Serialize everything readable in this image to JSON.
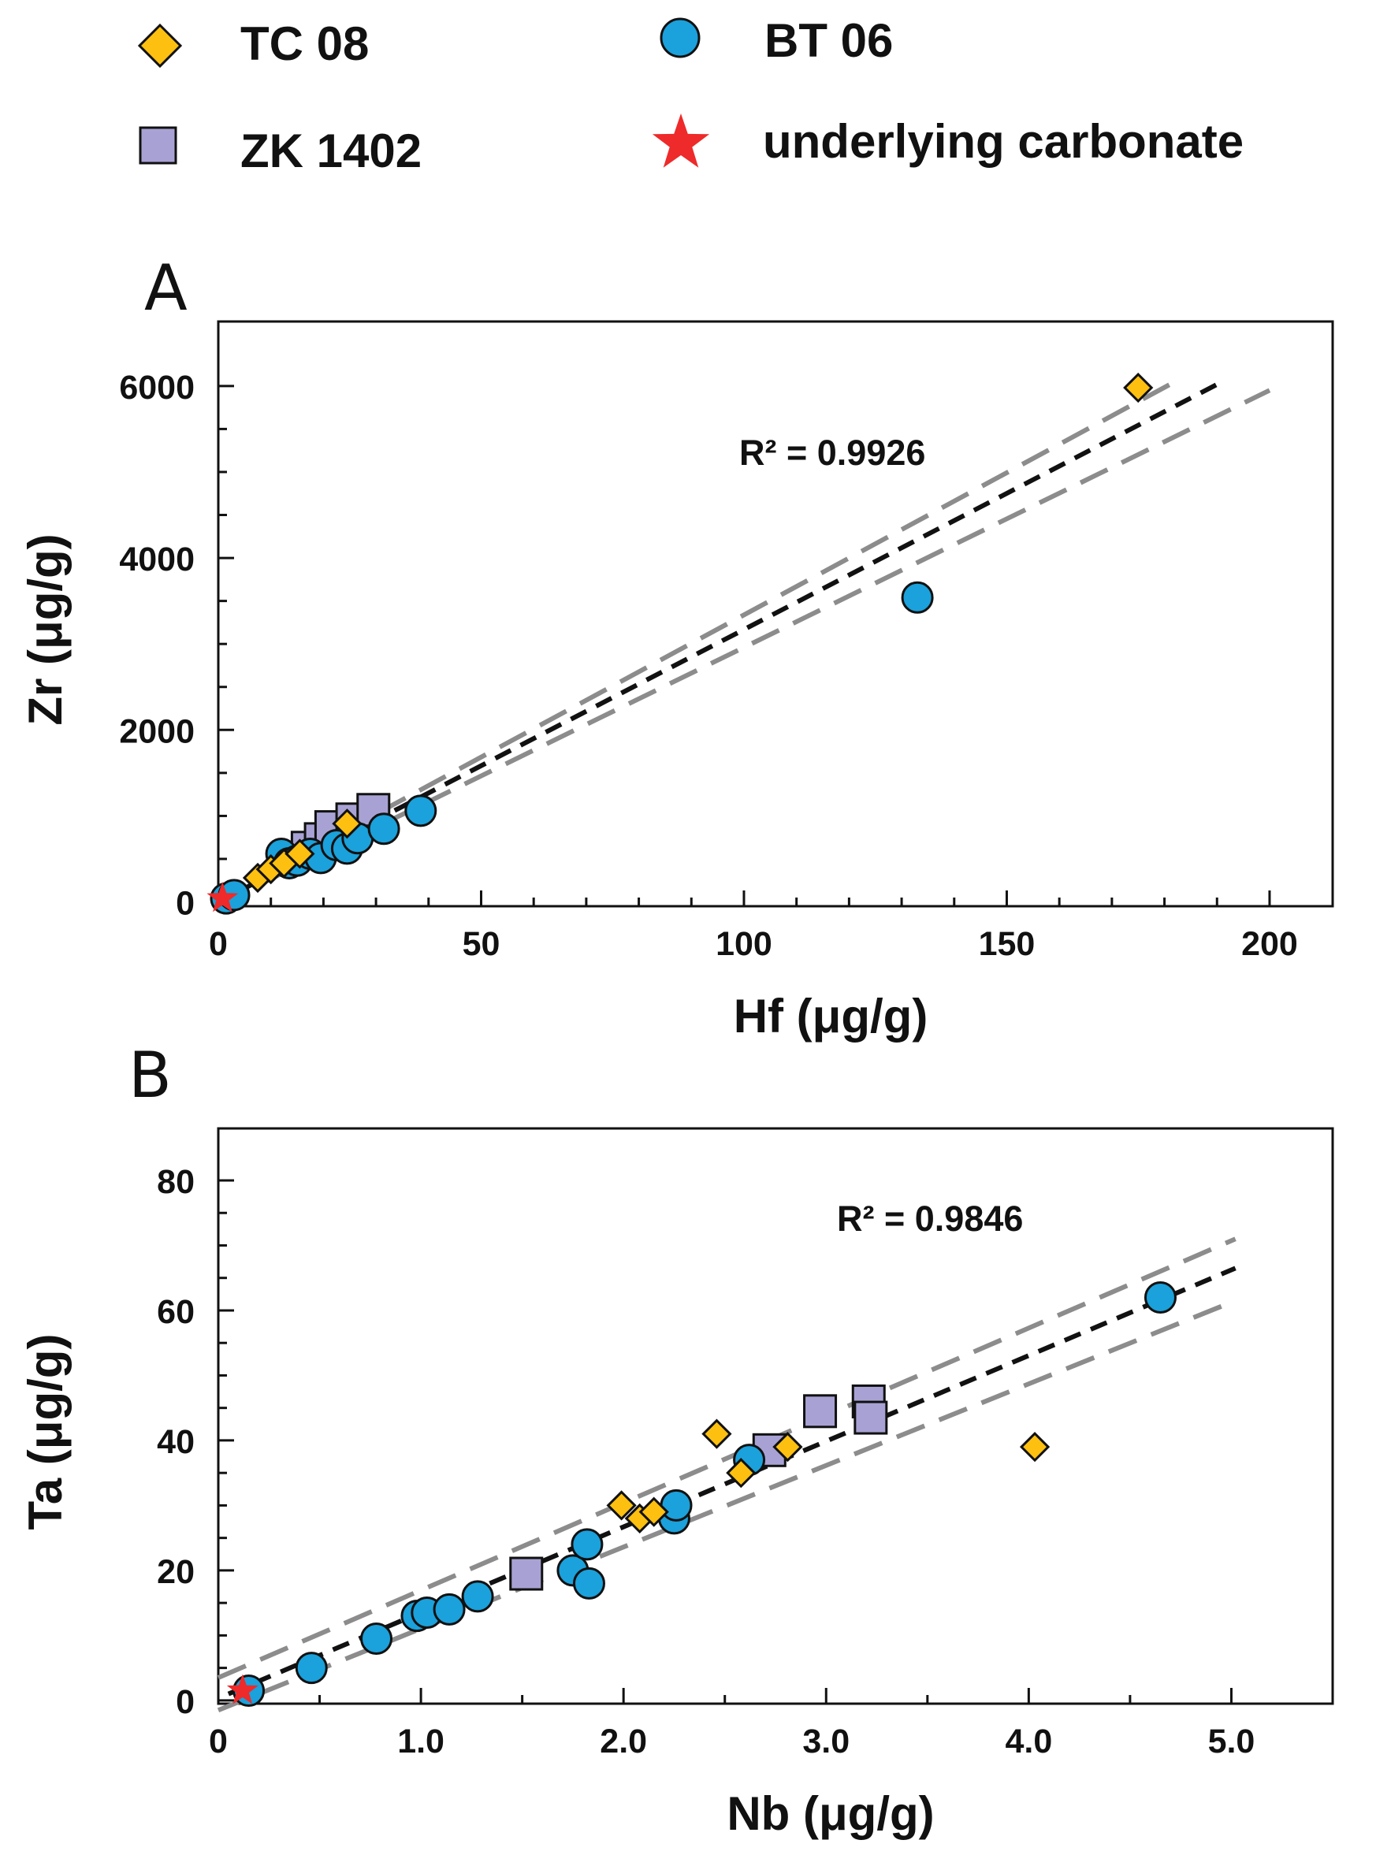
{
  "legend": {
    "items": [
      {
        "key": "tc08",
        "label": "TC 08",
        "marker": "diamond",
        "color": "#FDC010"
      },
      {
        "key": "bt06",
        "label": "BT 06",
        "marker": "circle",
        "color": "#1BA1DB"
      },
      {
        "key": "zk1402",
        "label": "ZK 1402",
        "marker": "square",
        "color": "#A8A2D4"
      },
      {
        "key": "carb",
        "label": "underlying carbonate",
        "marker": "star",
        "color": "#EE2A2A"
      }
    ]
  },
  "chart_data": [
    {
      "type": "scatter",
      "panel_label": "A",
      "xlabel": "Hf (μg/g)",
      "ylabel": "Zr (μg/g)",
      "xlim": [
        0,
        212
      ],
      "ylim": [
        -50,
        6750
      ],
      "x_ticks": [
        0,
        50,
        100,
        150,
        200
      ],
      "x_tick_labels": [
        "0",
        "50",
        "100",
        "150",
        "200"
      ],
      "y_ticks": [
        0,
        2000,
        4000,
        6000
      ],
      "y_tick_labels": [
        "0",
        "2000",
        "4000",
        "6000"
      ],
      "x_minor_step": 10,
      "y_minor_step": 500,
      "grid": false,
      "annotation": "R² = 0.9926",
      "fit": {
        "x": [
          0,
          191
        ],
        "y": [
          0,
          6050
        ]
      },
      "confidence_upper": {
        "x": [
          0,
          182
        ],
        "y": [
          30,
          6050
        ]
      },
      "confidence_lower": {
        "x": [
          0,
          200
        ],
        "y": [
          -30,
          5950
        ]
      },
      "series": [
        {
          "key": "tc08",
          "marker": "diamond",
          "color": "#FDC010",
          "x": [
            7.5,
            10,
            12.5,
            15.5,
            24.5,
            175
          ],
          "y": [
            280,
            380,
            450,
            560,
            910,
            5980
          ]
        },
        {
          "key": "bt06",
          "marker": "circle",
          "color": "#1BA1DB",
          "x": [
            1.5,
            3,
            12,
            13.5,
            15,
            17.5,
            19.5,
            22.5,
            24.5,
            26.5,
            31.5,
            38.5,
            133
          ],
          "y": [
            40,
            80,
            560,
            450,
            480,
            560,
            510,
            660,
            620,
            740,
            850,
            1060,
            3540
          ]
        },
        {
          "key": "zk1402",
          "marker": "square",
          "color": "#A8A2D4",
          "x": [
            17,
            19.5,
            21.5,
            25.5,
            29.5
          ],
          "y": [
            630,
            730,
            870,
            960,
            1070
          ]
        },
        {
          "key": "carb",
          "marker": "star",
          "color": "#EE2A2A",
          "x": [
            0.8
          ],
          "y": [
            40
          ]
        }
      ]
    },
    {
      "type": "scatter",
      "panel_label": "B",
      "xlabel": "Nb (μg/g)",
      "ylabel": "Ta (μg/g)",
      "xlim": [
        0,
        5.5
      ],
      "ylim": [
        -0.5,
        88
      ],
      "x_ticks": [
        0,
        1.0,
        2.0,
        3.0,
        4.0,
        5.0
      ],
      "x_tick_labels": [
        "0",
        "1.0",
        "2.0",
        "3.0",
        "4.0",
        "5.0"
      ],
      "y_ticks": [
        0,
        20,
        40,
        60,
        80
      ],
      "y_tick_labels": [
        "0",
        "20",
        "40",
        "60",
        "80"
      ],
      "x_minor_step": 0.5,
      "y_minor_step": 5,
      "grid": false,
      "annotation": "R² = 0.9846",
      "fit": {
        "x": [
          0.05,
          5.02
        ],
        "y": [
          1.0,
          66.5
        ]
      },
      "confidence_upper": {
        "x": [
          0,
          5.02
        ],
        "y": [
          3.5,
          71
        ]
      },
      "confidence_lower": {
        "x": [
          0,
          5.02
        ],
        "y": [
          -1.5,
          61.5
        ]
      },
      "series": [
        {
          "key": "tc08",
          "marker": "diamond",
          "color": "#FDC010",
          "x": [
            1.99,
            2.08,
            2.15,
            2.46,
            2.58,
            2.81,
            4.03
          ],
          "y": [
            30,
            28,
            29,
            41,
            35,
            39,
            39
          ]
        },
        {
          "key": "bt06",
          "marker": "circle",
          "color": "#1BA1DB",
          "x": [
            0.15,
            0.46,
            0.78,
            0.98,
            1.03,
            1.14,
            1.28,
            1.75,
            1.82,
            1.83,
            2.25,
            2.26,
            2.62,
            4.65
          ],
          "y": [
            1.5,
            5,
            9.5,
            13,
            13.5,
            14,
            16,
            20,
            24,
            18,
            28,
            30,
            37,
            62
          ]
        },
        {
          "key": "zk1402",
          "marker": "square",
          "color": "#A8A2D4",
          "x": [
            1.52,
            2.72,
            2.97,
            3.21,
            3.22
          ],
          "y": [
            19.5,
            38.5,
            44.5,
            46,
            43.5
          ]
        },
        {
          "key": "carb",
          "marker": "star",
          "color": "#EE2A2A",
          "x": [
            0.12
          ],
          "y": [
            1.5
          ]
        }
      ]
    }
  ]
}
